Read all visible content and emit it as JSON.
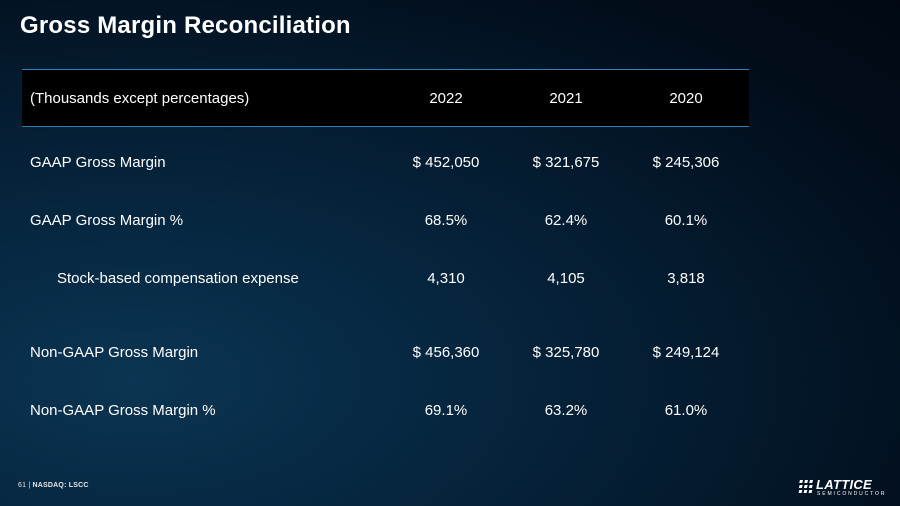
{
  "title": "Gross Margin Reconciliation",
  "table": {
    "header": {
      "label": "(Thousands except percentages)",
      "col_2022": "2022",
      "col_2021": "2021",
      "col_2020": "2020"
    },
    "rows": [
      {
        "label": "GAAP Gross Margin",
        "v2022": "$ 452,050",
        "v2021": "$ 321,675",
        "v2020": "$ 245,306"
      },
      {
        "label": "GAAP Gross Margin %",
        "v2022": "68.5%",
        "v2021": "62.4%",
        "v2020": "60.1%"
      },
      {
        "label": "Stock-based compensation expense",
        "v2022": "4,310",
        "v2021": "4,105",
        "v2020": "3,818"
      },
      {
        "label": "Non-GAAP Gross Margin",
        "v2022": "$ 456,360",
        "v2021": "$ 325,780",
        "v2020": "$ 249,124"
      },
      {
        "label": "Non-GAAP Gross Margin %",
        "v2022": "69.1%",
        "v2021": "63.2%",
        "v2020": "61.0%"
      }
    ]
  },
  "footer": {
    "page_number": "61",
    "separator": "|",
    "exchange": "NASDAQ: LSCC"
  },
  "logo": {
    "name": "LATTICE",
    "subtitle": "SEMICONDUCTOR"
  }
}
